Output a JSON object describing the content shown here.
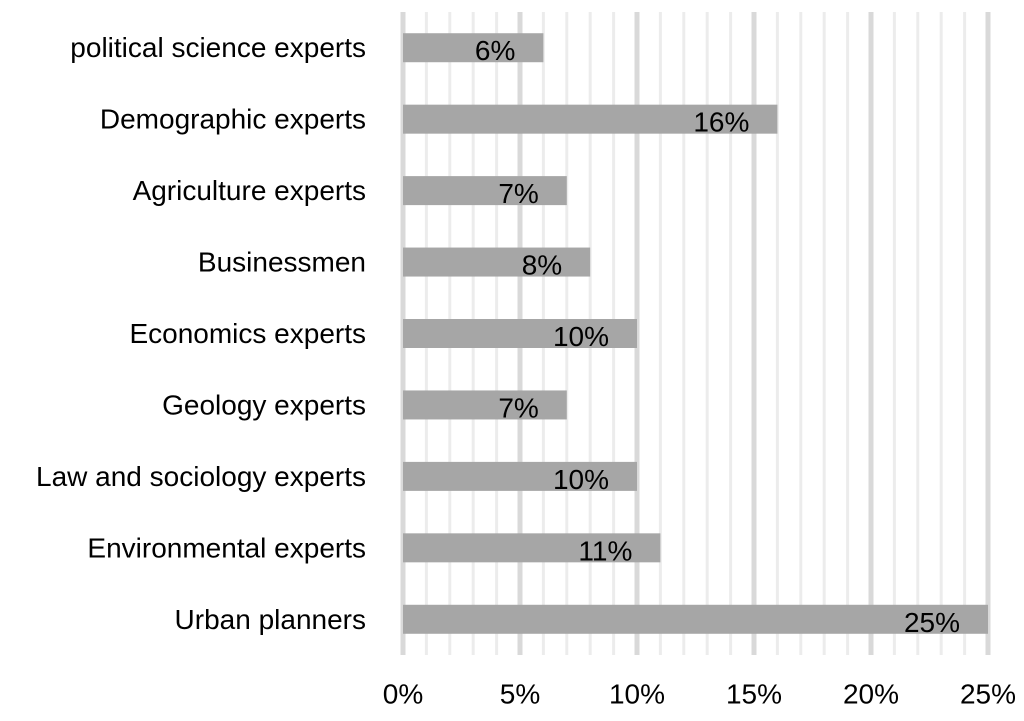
{
  "chart_data": {
    "type": "bar",
    "orientation": "horizontal",
    "categories": [
      "political science experts",
      "Demographic experts",
      "Agriculture experts",
      "Businessmen",
      "Economics experts",
      "Geology experts",
      "Law and sociology experts",
      "Environmental experts",
      "Urban planners"
    ],
    "values": [
      6,
      16,
      7,
      8,
      10,
      7,
      10,
      11,
      25
    ],
    "data_labels": [
      "6%",
      "16%",
      "7%",
      "8%",
      "10%",
      "7%",
      "10%",
      "11%",
      "25%"
    ],
    "x_ticks": [
      "0%",
      "5%",
      "10%",
      "15%",
      "20%",
      "25%"
    ],
    "xlim": [
      0,
      25
    ],
    "title": "",
    "xlabel": "",
    "ylabel": "",
    "grid": true,
    "legend": "none",
    "colors": {
      "bar": "#a6a6a6",
      "major_grid": "#d9d9d9",
      "minor_grid": "#ececec"
    }
  }
}
